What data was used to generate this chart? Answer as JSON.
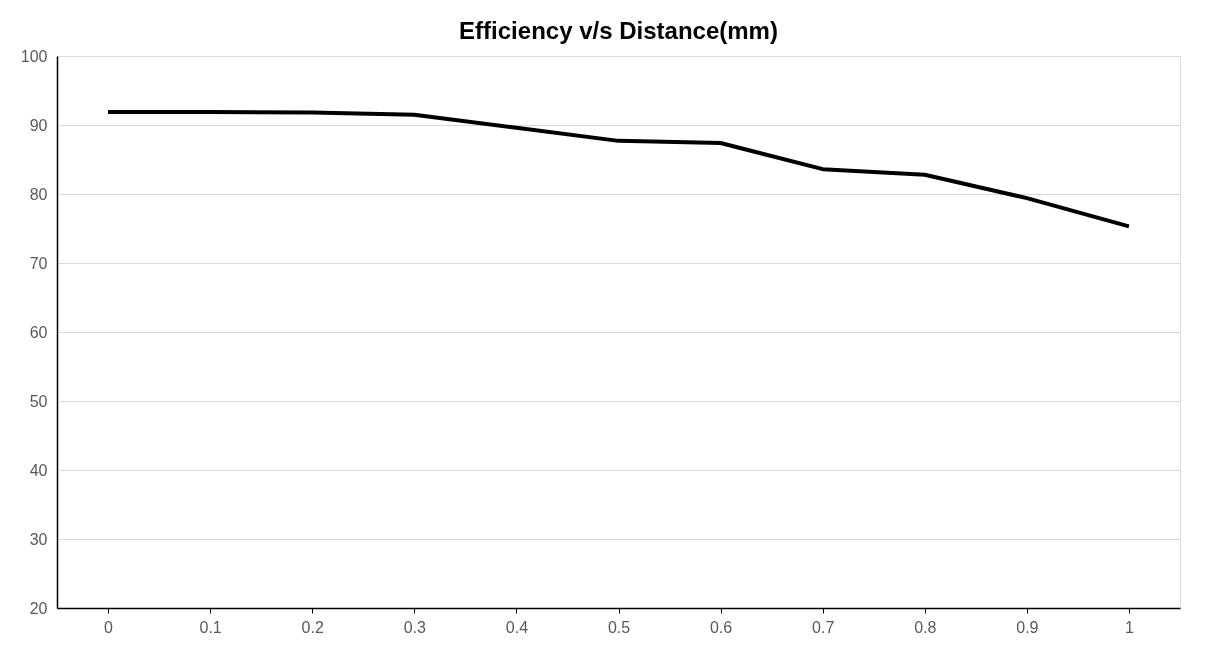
{
  "chart_data": {
    "type": "line",
    "title": "Efficiency v/s Distance(mm)",
    "categories": [
      "0",
      "0.1",
      "0.2",
      "0.3",
      "0.4",
      "0.5",
      "0.6",
      "0.7",
      "0.8",
      "0.9",
      "1"
    ],
    "series": [
      {
        "color": "#000000",
        "values": [
          91.9,
          91.9,
          91.8,
          91.5,
          89.6,
          87.7,
          87.4,
          83.6,
          82.8,
          79.4,
          75.3
        ]
      }
    ],
    "ylim": [
      20,
      100
    ],
    "yticks": [
      20,
      30,
      40,
      50,
      60,
      70,
      80,
      90,
      100
    ],
    "grid": "y",
    "marker": "none",
    "line_style": "solid"
  }
}
